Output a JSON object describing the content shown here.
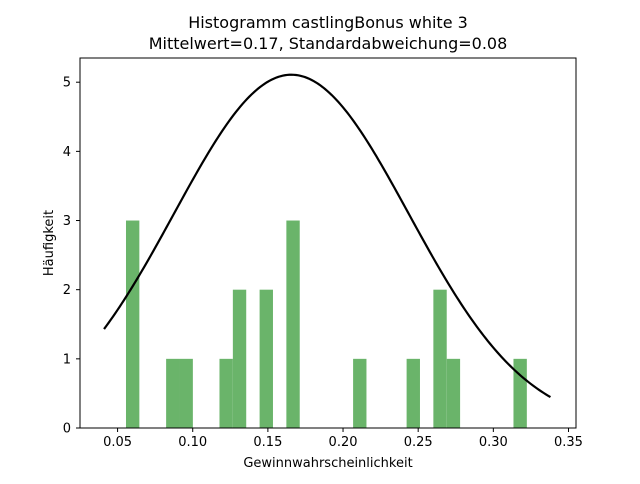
{
  "chart_data": {
    "type": "bar",
    "title_line1": "Histogramm castlingBonus white 3",
    "title_line2": "Mittelwert=0.17, Standardabweichung=0.08",
    "xlabel": "Gewinnwahrscheinlichkeit",
    "ylabel": "Häufigkeit",
    "xlim": [
      0.025,
      0.355
    ],
    "ylim": [
      0,
      5.35
    ],
    "x_ticks": [
      0.05,
      0.1,
      0.15,
      0.2,
      0.25,
      0.3,
      0.35
    ],
    "x_tick_labels": [
      "0.05",
      "0.10",
      "0.15",
      "0.20",
      "0.25",
      "0.30",
      "0.35"
    ],
    "y_ticks": [
      0,
      1,
      2,
      3,
      4,
      5
    ],
    "y_tick_labels": [
      "0",
      "1",
      "2",
      "3",
      "4",
      "5"
    ],
    "bar_width": 0.00889,
    "bars": [
      {
        "x0": 0.0556,
        "count": 3
      },
      {
        "x0": 0.0823,
        "count": 1
      },
      {
        "x0": 0.0912,
        "count": 1
      },
      {
        "x0": 0.1178,
        "count": 1
      },
      {
        "x0": 0.1267,
        "count": 2
      },
      {
        "x0": 0.1445,
        "count": 2
      },
      {
        "x0": 0.1623,
        "count": 3
      },
      {
        "x0": 0.2067,
        "count": 1
      },
      {
        "x0": 0.2423,
        "count": 1
      },
      {
        "x0": 0.2601,
        "count": 2
      },
      {
        "x0": 0.269,
        "count": 1
      },
      {
        "x0": 0.3134,
        "count": 1
      }
    ],
    "curve": {
      "mean": 0.1656,
      "std": 0.0781,
      "x_range": [
        0.041,
        0.338
      ],
      "scale": 1.0
    },
    "bar_color": "#6ab46a",
    "curve_color": "#000000",
    "grid": false,
    "legend": "none"
  }
}
